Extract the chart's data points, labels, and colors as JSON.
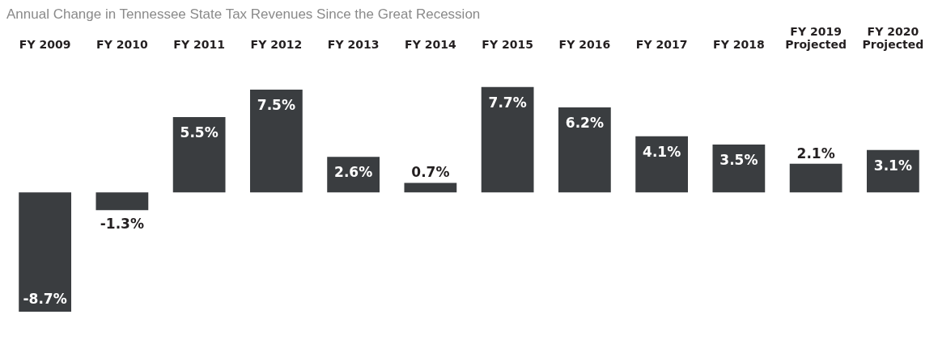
{
  "chart_data": {
    "type": "bar",
    "title": "Annual Change in Tennessee State Tax Revenues Since the Great Recession",
    "categories": [
      "FY 2009",
      "FY 2010",
      "FY 2011",
      "FY 2012",
      "FY 2013",
      "FY 2014",
      "FY 2015",
      "FY 2016",
      "FY 2017",
      "FY 2018",
      "FY 2019\nProjected",
      "FY 2020\nProjected"
    ],
    "values": [
      -8.7,
      -1.3,
      5.5,
      7.5,
      2.6,
      0.7,
      7.7,
      6.2,
      4.1,
      3.5,
      2.1,
      3.1
    ],
    "value_labels": [
      "-8.7%",
      "-1.3%",
      "5.5%",
      "7.5%",
      "2.6%",
      "0.7%",
      "7.7%",
      "6.2%",
      "4.1%",
      "3.5%",
      "2.1%",
      "3.1%"
    ],
    "color": "#3a3d40",
    "grid": false,
    "legend": false
  }
}
